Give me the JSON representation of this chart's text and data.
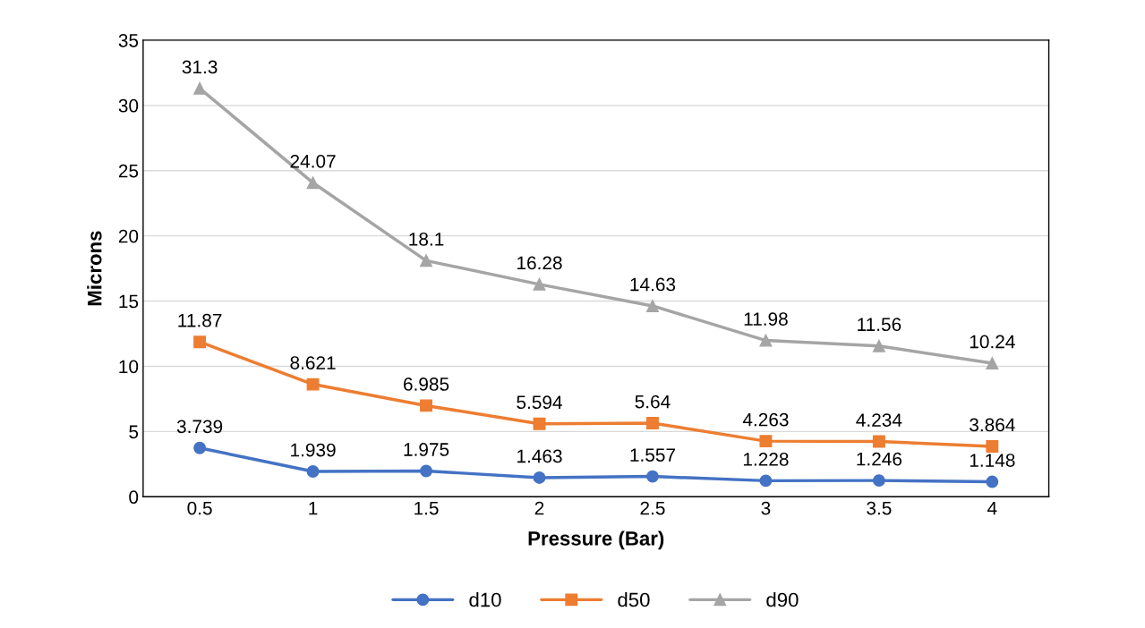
{
  "chart_data": {
    "type": "line",
    "xlabel": "Pressure (Bar)",
    "ylabel": "Microns",
    "categories": [
      "0.5",
      "1",
      "1.5",
      "2",
      "2.5",
      "3",
      "3.5",
      "4"
    ],
    "series": [
      {
        "name": "d10",
        "color": "#4472c4",
        "marker": "circle",
        "values": [
          3.739,
          1.939,
          1.975,
          1.463,
          1.557,
          1.228,
          1.246,
          1.148
        ]
      },
      {
        "name": "d50",
        "color": "#ed7d31",
        "marker": "square",
        "values": [
          11.87,
          8.621,
          6.985,
          5.594,
          5.64,
          4.263,
          4.234,
          3.864
        ]
      },
      {
        "name": "d90",
        "color": "#a5a5a5",
        "marker": "triangle",
        "values": [
          31.3,
          24.07,
          18.1,
          16.28,
          14.63,
          11.98,
          11.56,
          10.24
        ]
      }
    ],
    "ylim": [
      0,
      35
    ],
    "yticks": [
      0,
      5,
      10,
      15,
      20,
      25,
      30,
      35
    ],
    "grid": "y",
    "legend": "bottom",
    "data_labels": true,
    "line_style": "solid"
  }
}
